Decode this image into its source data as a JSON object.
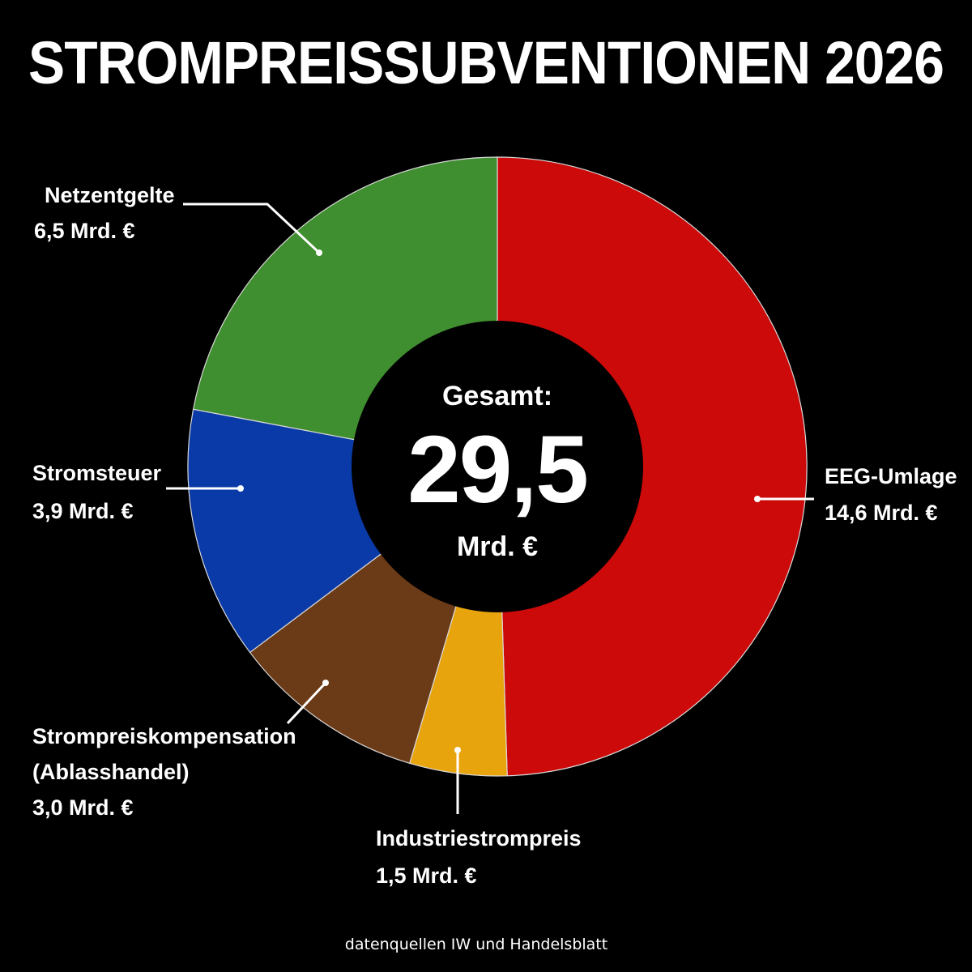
{
  "title": "STROMPREISSUBVENTIONEN 2026",
  "center": {
    "label": "Gesamt:",
    "value": "29,5",
    "unit": "Mrd. €"
  },
  "source": "datenquellen IW und Handelsblatt",
  "chart_data": {
    "type": "pie",
    "subtype": "donut",
    "total": 29.5,
    "unit": "Mrd. €",
    "start_angle_deg": 0,
    "direction": "clockwise",
    "slices": [
      {
        "name": "EEG-Umlage",
        "value": 14.6,
        "value_label": "14,6 Mrd. €",
        "color": "#cc0a0a"
      },
      {
        "name": "Industriestrompreis",
        "value": 1.5,
        "value_label": "1,5 Mrd. €",
        "color": "#e8a40c"
      },
      {
        "name": "Strompreiskompensation (Ablasshandel)",
        "value": 3.0,
        "value_label": "3,0 Mrd. €",
        "color": "#6b3a16"
      },
      {
        "name": "Stromsteuer",
        "value": 3.9,
        "value_label": "3,9 Mrd. €",
        "color": "#0a3aa8"
      },
      {
        "name": "Netzentgelte",
        "value": 6.5,
        "value_label": "6,5 Mrd. €",
        "color": "#3f8e2f"
      }
    ]
  },
  "labels": {
    "eeg": {
      "line1": "EEG-Umlage",
      "line2": "14,6 Mrd. €"
    },
    "industrie": {
      "line1": "Industriestrompreis",
      "line2": "1,5 Mrd. €"
    },
    "kompensation": {
      "line1": "Strompreiskompensation",
      "line2": "(Ablasshandel)",
      "line3": "3,0 Mrd. €"
    },
    "steuer": {
      "line1": "Stromsteuer",
      "line2": "3,9 Mrd. €"
    },
    "netz": {
      "line1": "Netzentgelte",
      "line2": "6,5 Mrd. €"
    }
  }
}
